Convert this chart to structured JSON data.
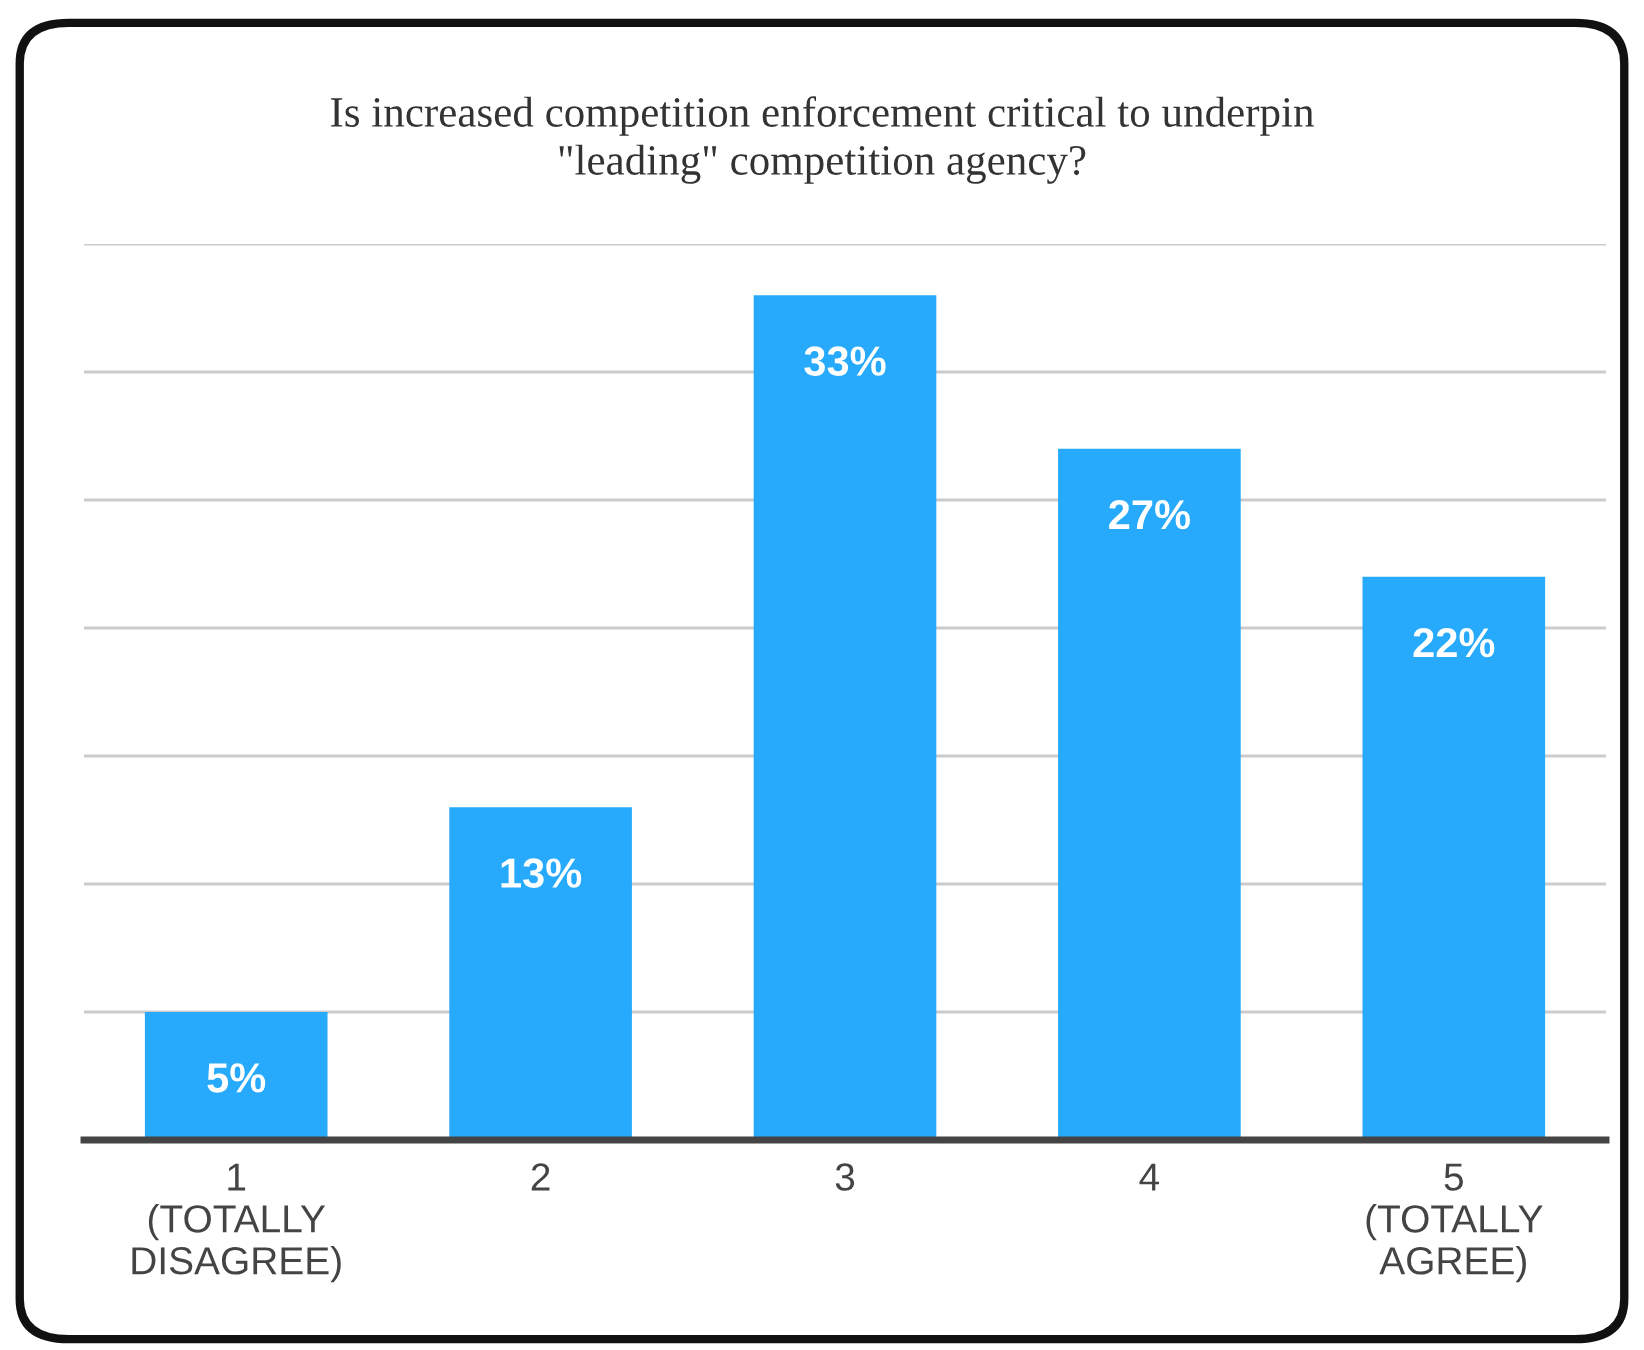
{
  "chart_data": {
    "type": "bar",
    "title": "Is increased competition enforcement critical to underpin\n\"leading\" competition agency?",
    "categories": [
      "1\n(TOTALLY\nDISAGREE)",
      "2",
      "3",
      "4",
      "5\n(TOTALLY\nAGREE)"
    ],
    "values": [
      5,
      13,
      33,
      27,
      22
    ],
    "value_labels": [
      "5%",
      "13%",
      "33%",
      "27%",
      "22%"
    ],
    "color": "#27aafc",
    "ylim": [
      0,
      35
    ],
    "yticks": [
      {
        "value": 0,
        "label": null
      },
      {
        "value": 5,
        "label": null
      },
      {
        "value": 10,
        "label": null
      },
      {
        "value": 15,
        "label": null
      },
      {
        "value": 20,
        "label": null
      },
      {
        "value": 25,
        "label": null
      },
      {
        "value": 30,
        "label": null
      },
      {
        "value": 35,
        "label": null
      }
    ],
    "grid": "y",
    "legend": false
  }
}
